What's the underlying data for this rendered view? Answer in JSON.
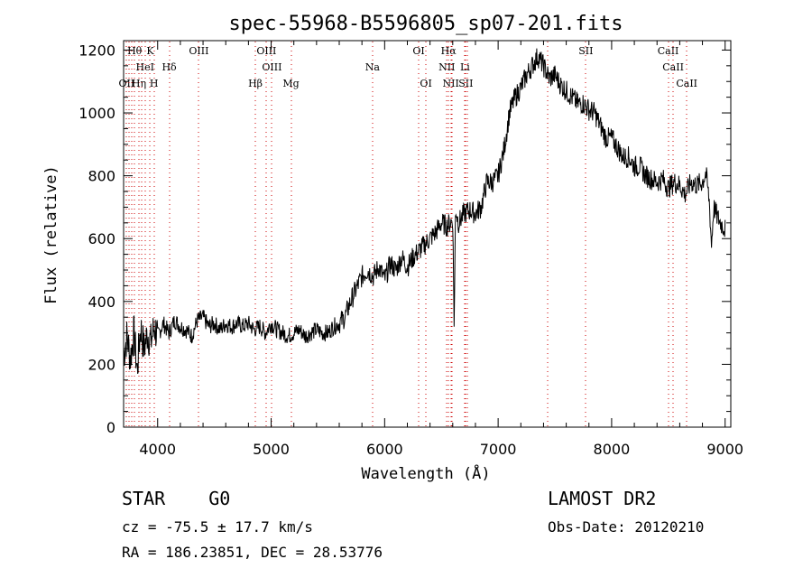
{
  "chart_data": {
    "type": "line",
    "title": "spec-55968-B5596805_sp07-201.fits",
    "xlabel": "Wavelength (Å)",
    "ylabel": "Flux (relative)",
    "xlim": [
      3700,
      9050
    ],
    "ylim": [
      0,
      1230
    ],
    "xticks": [
      4000,
      5000,
      6000,
      7000,
      8000,
      9000
    ],
    "yticks": [
      0,
      200,
      400,
      600,
      800,
      1000,
      1200
    ],
    "grid": false,
    "line_color": "#000000",
    "marker_color": "#cc0000",
    "series": [
      {
        "x": [
          3700,
          3730,
          3760,
          3790,
          3820,
          3850,
          3880,
          3910,
          3940,
          3970,
          4000,
          4050,
          4100,
          4150,
          4200,
          4250,
          4300,
          4350,
          4400,
          4450,
          4500,
          4550,
          4600,
          4650,
          4700,
          4750,
          4800,
          4850,
          4900,
          4950,
          5000,
          5050,
          5100,
          5150,
          5200,
          5250,
          5300,
          5350,
          5400,
          5450,
          5500,
          5550,
          5600,
          5650,
          5700,
          5750,
          5800,
          5850,
          5900,
          5950,
          6000,
          6050,
          6100,
          6150,
          6200,
          6250,
          6300,
          6350,
          6400,
          6450,
          6500,
          6550,
          6600,
          6613,
          6625,
          6650,
          6700,
          6750,
          6800,
          6850,
          6900,
          6950,
          7000,
          7050,
          7100,
          7150,
          7200,
          7250,
          7300,
          7350,
          7400,
          7450,
          7500,
          7550,
          7600,
          7650,
          7700,
          7750,
          7800,
          7850,
          7900,
          7950,
          8000,
          8050,
          8100,
          8150,
          8200,
          8250,
          8300,
          8350,
          8400,
          8450,
          8500,
          8550,
          8600,
          8650,
          8700,
          8750,
          8800,
          8830,
          8860,
          8880,
          8900,
          8930,
          8960,
          9000
        ],
        "values": [
          230,
          290,
          220,
          300,
          180,
          320,
          250,
          300,
          270,
          320,
          290,
          330,
          300,
          340,
          320,
          310,
          290,
          340,
          350,
          320,
          330,
          310,
          330,
          320,
          330,
          320,
          330,
          310,
          320,
          300,
          330,
          310,
          300,
          290,
          300,
          310,
          290,
          300,
          310,
          300,
          300,
          320,
          330,
          350,
          400,
          440,
          480,
          500,
          480,
          510,
          470,
          520,
          500,
          540,
          510,
          540,
          560,
          580,
          600,
          620,
          650,
          640,
          660,
          320,
          700,
          650,
          680,
          690,
          680,
          700,
          780,
          780,
          800,
          880,
          1000,
          1050,
          1080,
          1120,
          1150,
          1180,
          1150,
          1110,
          1120,
          1090,
          1070,
          1050,
          1030,
          1030,
          1010,
          1000,
          960,
          920,
          920,
          890,
          860,
          860,
          830,
          830,
          800,
          790,
          780,
          790,
          760,
          780,
          770,
          740,
          780,
          770,
          780,
          810,
          720,
          580,
          700,
          670,
          650,
          630
        ]
      }
    ],
    "markers": [
      {
        "label": "Hθ",
        "x": 3797,
        "row": 0
      },
      {
        "label": "K",
        "x": 3934,
        "row": 0
      },
      {
        "label": "OIII",
        "x": 4363,
        "row": 0
      },
      {
        "label": "OIII",
        "x": 4959,
        "row": 0
      },
      {
        "label": "OI",
        "x": 6300,
        "row": 0
      },
      {
        "label": "Hα",
        "x": 6563,
        "row": 0
      },
      {
        "label": "SII",
        "x": 7773,
        "row": 0
      },
      {
        "label": "CaII",
        "x": 8498,
        "row": 0
      },
      {
        "label": "HeI",
        "x": 3889,
        "row": 1
      },
      {
        "label": "Hδ",
        "x": 4102,
        "row": 1
      },
      {
        "label": "OIII",
        "x": 5007,
        "row": 1
      },
      {
        "label": "Na",
        "x": 5893,
        "row": 1
      },
      {
        "label": "NII",
        "x": 6548,
        "row": 1
      },
      {
        "label": "Li",
        "x": 6708,
        "row": 1
      },
      {
        "label": "CaII",
        "x": 8542,
        "row": 1
      },
      {
        "label": "OII",
        "x": 3727,
        "row": 2
      },
      {
        "label": "Hη",
        "x": 3835,
        "row": 2
      },
      {
        "label": "H",
        "x": 3968,
        "row": 2
      },
      {
        "label": "Hβ",
        "x": 4861,
        "row": 2
      },
      {
        "label": "Mg",
        "x": 5175,
        "row": 2
      },
      {
        "label": "OI",
        "x": 6364,
        "row": 2
      },
      {
        "label": "NII",
        "x": 6583,
        "row": 2
      },
      {
        "label": "SII",
        "x": 6716,
        "row": 2
      },
      {
        "label": "CaII",
        "x": 8662,
        "row": 2
      }
    ],
    "extra_lines": [
      3750,
      3771,
      3856,
      6595,
      6731,
      7440
    ]
  },
  "info": {
    "class_label": "STAR",
    "subclass": "G0",
    "survey": "LAMOST DR2",
    "cz": "cz = -75.5 ± 17.7 km/s",
    "obs_date": "Obs-Date: 20120210",
    "radec": "RA = 186.23851, DEC =  28.53776"
  }
}
